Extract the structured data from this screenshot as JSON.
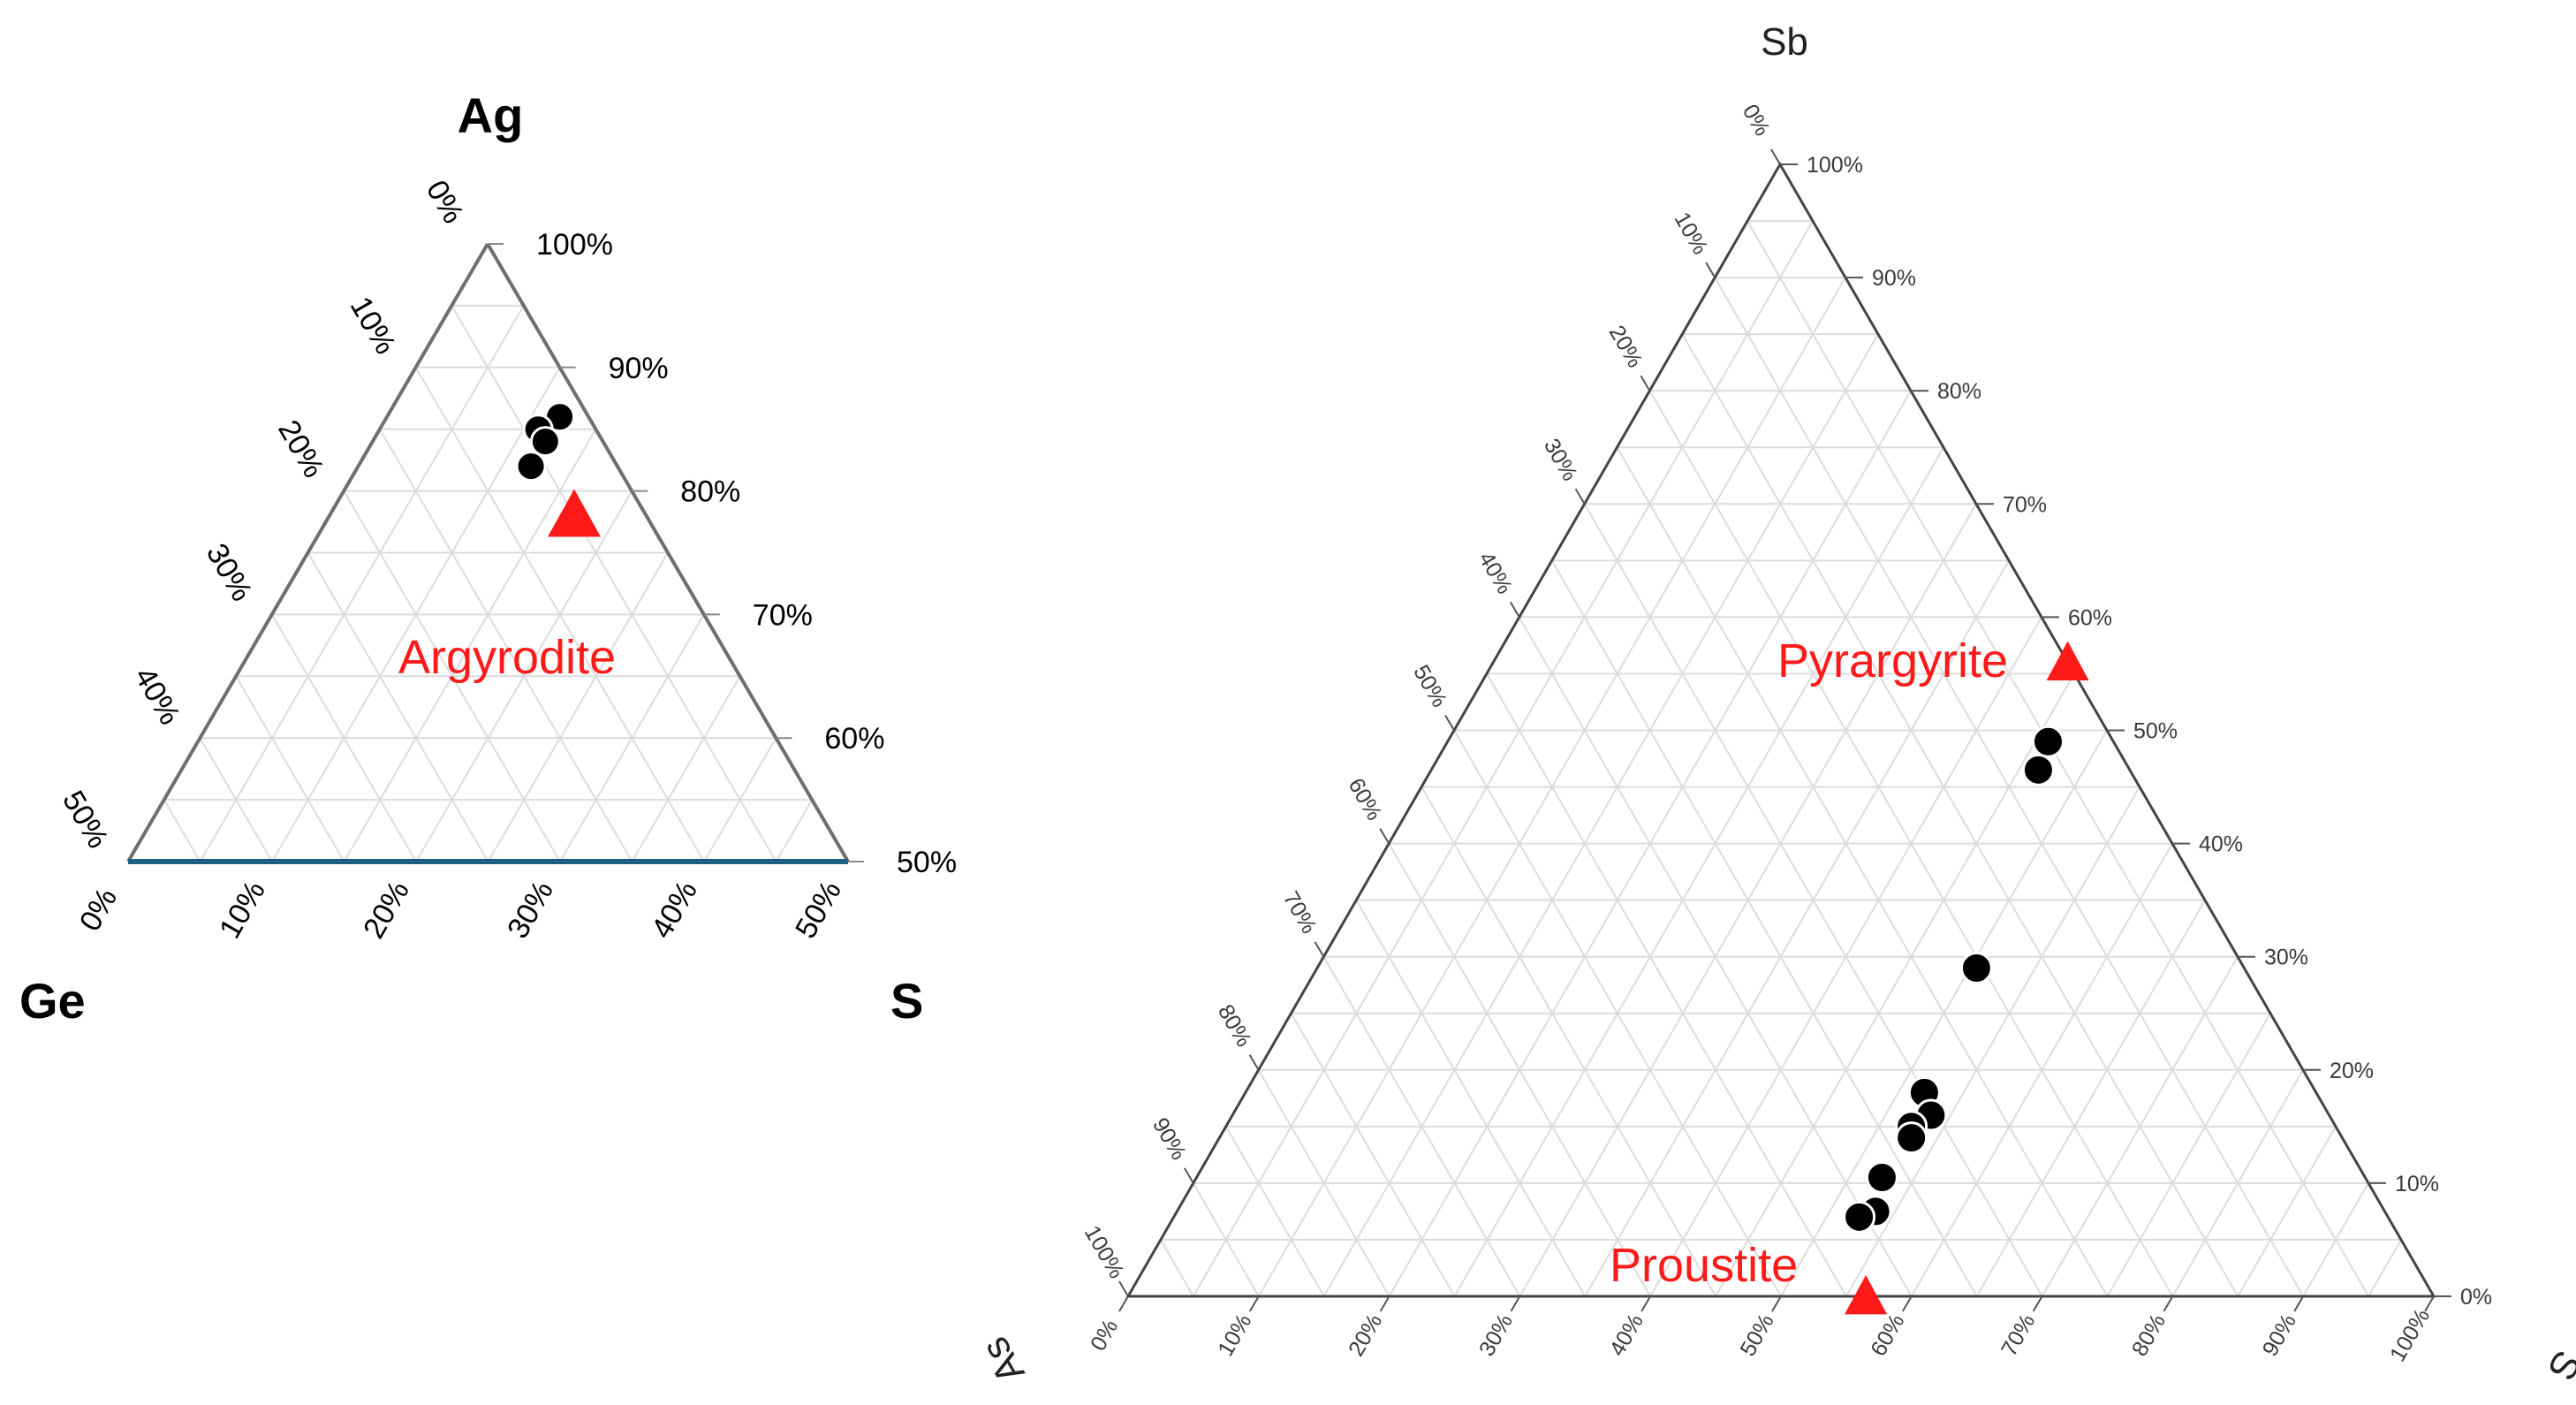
{
  "colors": {
    "point": "#000000",
    "mineral": "#ff1a1a",
    "grid": "#dcdcdc",
    "base_left": "#1f5f86"
  },
  "chart_data": [
    {
      "type": "scatter",
      "subtype": "ternary",
      "title": "",
      "apex_labels": {
        "top": "Ag",
        "left": "Ge",
        "right": "S"
      },
      "axes": {
        "top_ticks": [
          "100%",
          "90%",
          "80%",
          "70%",
          "60%",
          "50%"
        ],
        "left_ticks": [
          "0%",
          "10%",
          "20%",
          "30%",
          "40%",
          "50%"
        ],
        "bottom_ticks": [
          "0%",
          "10%",
          "20%",
          "30%",
          "40%",
          "50%"
        ],
        "range": "top component 50%-100%"
      },
      "grid": true,
      "points": [
        {
          "Ag": 86.0,
          "S": 12.0,
          "Ge": 2.0
        },
        {
          "Ag": 85.0,
          "S": 11.0,
          "Ge": 4.0
        },
        {
          "Ag": 84.0,
          "S": 12.0,
          "Ge": 4.0
        },
        {
          "Ag": 82.0,
          "S": 12.0,
          "Ge": 6.0
        }
      ],
      "annotations": [
        {
          "label": "Argyrodite",
          "Ag": 78.0,
          "S": 17.0,
          "Ge": 5.0,
          "marker": "triangle"
        }
      ]
    },
    {
      "type": "scatter",
      "subtype": "ternary",
      "title": "",
      "apex_labels": {
        "top": "Sb",
        "left": "As",
        "right": "S"
      },
      "axes": {
        "top_ticks": [
          "100%",
          "90%",
          "80%",
          "70%",
          "60%",
          "50%",
          "40%",
          "30%",
          "20%",
          "10%",
          "0%"
        ],
        "left_ticks": [
          "0%",
          "10%",
          "20%",
          "30%",
          "40%",
          "50%",
          "60%",
          "70%",
          "80%",
          "90%",
          "100%"
        ],
        "bottom_ticks": [
          "0%",
          "10%",
          "20%",
          "30%",
          "40%",
          "50%",
          "60%",
          "70%",
          "80%",
          "90%",
          "100%"
        ]
      },
      "grid": true,
      "points": [
        {
          "Sb": 49.0,
          "S": 46.0,
          "As": 5.0
        },
        {
          "Sb": 46.5,
          "S": 46.5,
          "As": 7.0
        },
        {
          "Sb": 29.0,
          "S": 50.5,
          "As": 20.5
        },
        {
          "Sb": 18.0,
          "S": 52.0,
          "As": 30.0
        },
        {
          "Sb": 16.0,
          "S": 53.5,
          "As": 30.5
        },
        {
          "Sb": 15.0,
          "S": 52.5,
          "As": 32.5
        },
        {
          "Sb": 14.0,
          "S": 53.0,
          "As": 33.0
        },
        {
          "Sb": 10.5,
          "S": 52.5,
          "As": 37.0
        },
        {
          "Sb": 7.5,
          "S": 53.5,
          "As": 39.0
        },
        {
          "Sb": 7.0,
          "S": 52.5,
          "As": 40.5
        }
      ],
      "annotations": [
        {
          "label": "Pyrargyrite",
          "Sb": 56.0,
          "S": 44.0,
          "As": 0.0,
          "marker": "triangle"
        },
        {
          "label": "Proustite",
          "Sb": 0.0,
          "S": 56.5,
          "As": 43.5,
          "marker": "triangle"
        }
      ]
    }
  ]
}
